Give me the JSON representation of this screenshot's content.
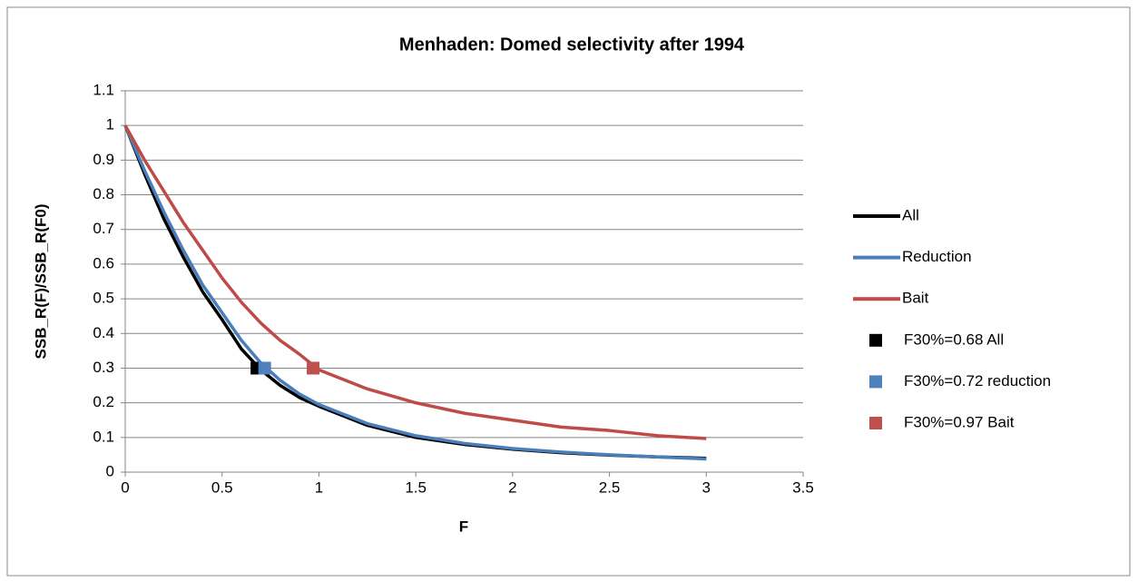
{
  "chart_data": {
    "type": "line",
    "title": "Menhaden: Domed selectivity after 1994",
    "x_label": "F",
    "y_label": "SSB_R(F)/SSB_R(F0)",
    "xlim": [
      0,
      3.5
    ],
    "xticks": [
      0,
      0.5,
      1,
      1.5,
      2,
      2.5,
      3,
      3.5
    ],
    "ylim": [
      0,
      1.1
    ],
    "yticks": [
      0,
      0.1,
      0.2,
      0.3,
      0.4,
      0.5,
      0.6,
      0.7,
      0.8,
      0.9,
      1,
      1.1
    ],
    "grid": true,
    "legend": "right",
    "series": [
      {
        "name": "All",
        "color": "#000000",
        "mode": "line",
        "x": [
          0,
          0.1,
          0.2,
          0.3,
          0.4,
          0.5,
          0.6,
          0.7,
          0.8,
          0.9,
          1,
          1.25,
          1.5,
          1.75,
          2,
          2.25,
          2.5,
          2.75,
          3
        ],
        "values": [
          1,
          0.86,
          0.73,
          0.62,
          0.52,
          0.44,
          0.355,
          0.295,
          0.25,
          0.215,
          0.19,
          0.135,
          0.1,
          0.08,
          0.066,
          0.056,
          0.049,
          0.044,
          0.04
        ]
      },
      {
        "name": "Reduction",
        "color": "#4a7ebb",
        "mode": "line",
        "x": [
          0,
          0.1,
          0.2,
          0.3,
          0.4,
          0.5,
          0.6,
          0.7,
          0.8,
          0.9,
          1,
          1.25,
          1.5,
          1.75,
          2,
          2.25,
          2.5,
          2.75,
          3
        ],
        "values": [
          1,
          0.87,
          0.75,
          0.64,
          0.54,
          0.46,
          0.38,
          0.315,
          0.265,
          0.225,
          0.195,
          0.14,
          0.105,
          0.083,
          0.068,
          0.058,
          0.05,
          0.044,
          0.038
        ]
      },
      {
        "name": "Bait",
        "color": "#be4b48",
        "mode": "line",
        "x": [
          0,
          0.1,
          0.2,
          0.3,
          0.4,
          0.5,
          0.6,
          0.7,
          0.8,
          0.9,
          1,
          1.25,
          1.5,
          1.75,
          2,
          2.25,
          2.5,
          2.75,
          3
        ],
        "values": [
          1,
          0.9,
          0.81,
          0.72,
          0.64,
          0.56,
          0.49,
          0.43,
          0.38,
          0.34,
          0.295,
          0.24,
          0.2,
          0.17,
          0.15,
          0.13,
          0.12,
          0.105,
          0.097
        ]
      },
      {
        "name": "F30%=0.68 All",
        "color": "#000000",
        "mode": "marker",
        "x": [
          0.68
        ],
        "values": [
          0.3
        ]
      },
      {
        "name": "F30%=0.72 reduction",
        "color": "#4f81bd",
        "mode": "marker",
        "x": [
          0.72
        ],
        "values": [
          0.3
        ]
      },
      {
        "name": "F30%=0.97 Bait",
        "color": "#c0504d",
        "mode": "marker",
        "x": [
          0.97
        ],
        "values": [
          0.3
        ]
      }
    ]
  }
}
